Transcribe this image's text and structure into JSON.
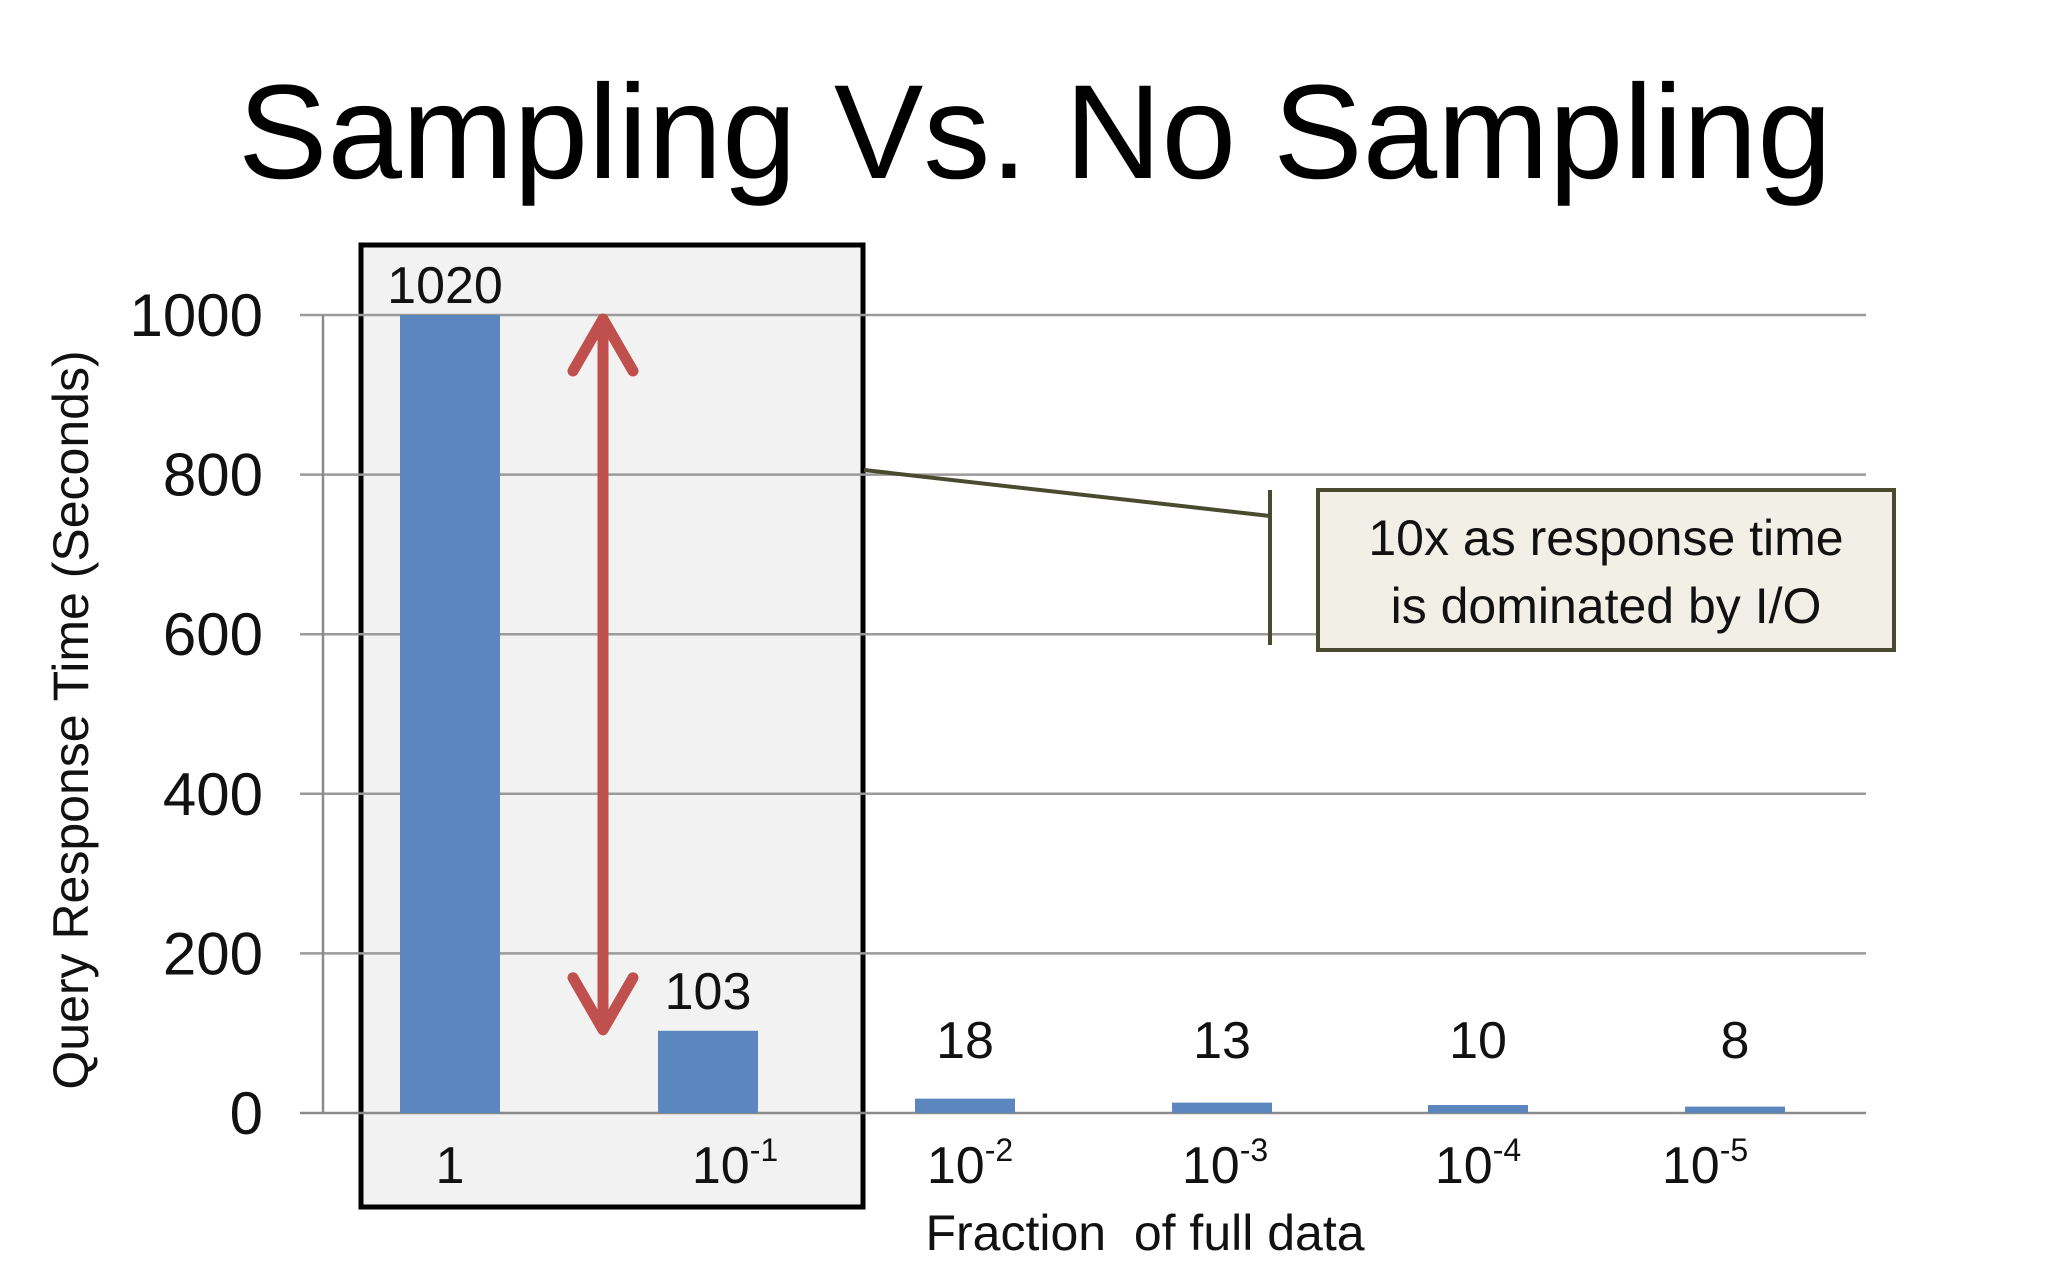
{
  "chart_data": {
    "type": "bar",
    "title": "Sampling Vs. No Sampling",
    "xlabel": "Fraction  of full data",
    "ylabel": "Query Response Time  (Seconds)",
    "ylim": [
      0,
      1000
    ],
    "yticks": [
      0,
      200,
      400,
      600,
      800,
      1000
    ],
    "categories": [
      {
        "base": "1",
        "exp": ""
      },
      {
        "base": "10",
        "exp": "-1"
      },
      {
        "base": "10",
        "exp": "-2"
      },
      {
        "base": "10",
        "exp": "-3"
      },
      {
        "base": "10",
        "exp": "-4"
      },
      {
        "base": "10",
        "exp": "-5"
      }
    ],
    "values": [
      1020,
      103,
      18,
      13,
      10,
      8
    ],
    "data_labels": [
      "1020",
      "103",
      "18",
      "13",
      "10",
      "8"
    ],
    "grid": true,
    "bar_color": "#5B86BE",
    "highlight": {
      "categories": [
        "1",
        "10-1"
      ],
      "fill": "#F2F2F2",
      "border_color": "#000000"
    },
    "arrow": {
      "from_value": 1000,
      "to_value": 103,
      "color": "#C0504D"
    },
    "annotation": {
      "lines": [
        "10x as response time",
        "is dominated by I/O"
      ],
      "box_fill": "#F2F0E6",
      "border_color": "#4A4A2E"
    }
  }
}
